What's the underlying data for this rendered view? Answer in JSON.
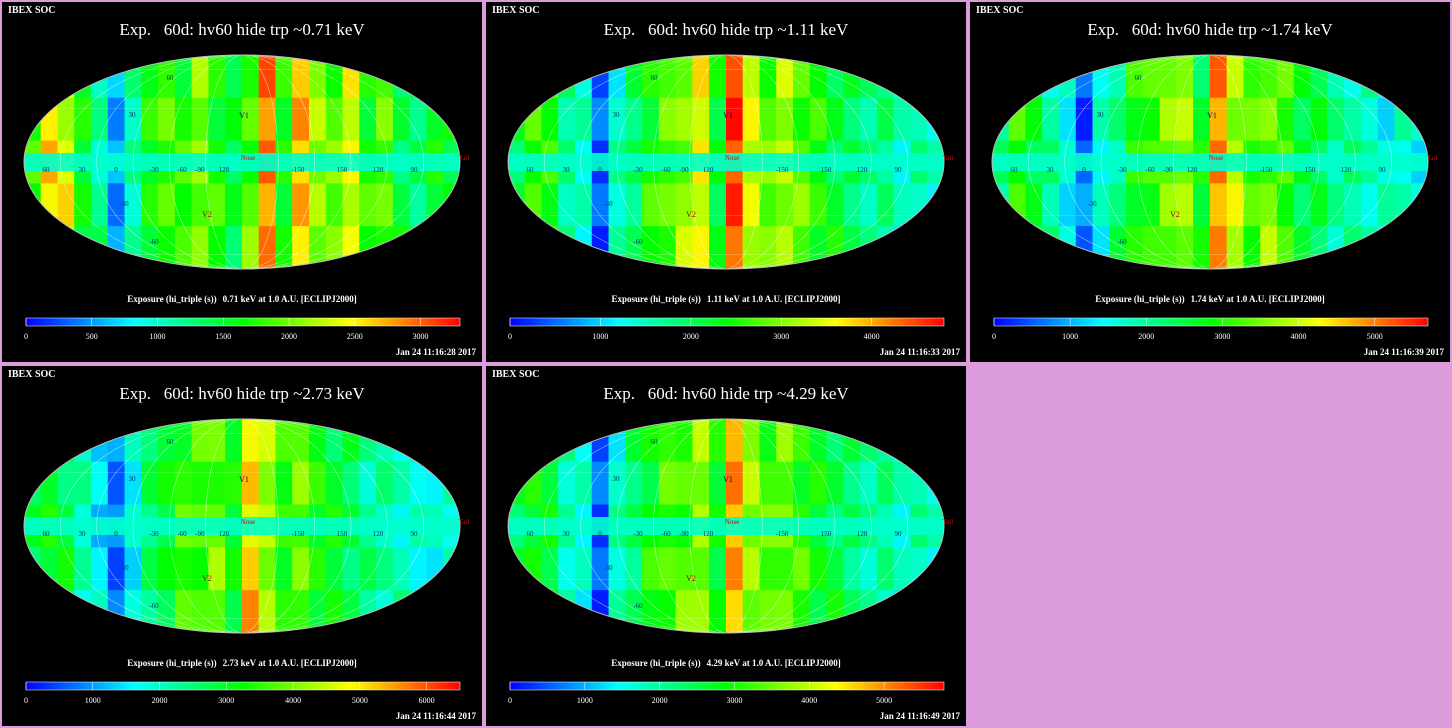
{
  "panels": [
    {
      "soc": "IBEX SOC",
      "title": "Exp.   60d: hv60 hide trp ~0.71 keV",
      "caption_left": "Exposure (hi_triple (s))",
      "caption_right": "0.71 keV at 1.0 A.U. [ECLIPJ2000]",
      "timestamp": "Jan 24 11:16:28 2017",
      "colorbar_ticks": [
        "0",
        "500",
        "1000",
        "1500",
        "2000",
        "2500",
        "3000"
      ],
      "colorbar_max": 3300
    },
    {
      "soc": "IBEX SOC",
      "title": "Exp.   60d: hv60 hide trp ~1.11 keV",
      "caption_left": "Exposure (hi_triple (s))",
      "caption_right": "1.11 keV at 1.0 A.U. [ECLIPJ2000]",
      "timestamp": "Jan 24 11:16:33 2017",
      "colorbar_ticks": [
        "0",
        "1000",
        "2000",
        "3000",
        "4000"
      ],
      "colorbar_max": 4800
    },
    {
      "soc": "IBEX SOC",
      "title": "Exp.   60d: hv60 hide trp ~1.74 keV",
      "caption_left": "Exposure (hi_triple (s))",
      "caption_right": "1.74 keV at 1.0 A.U. [ECLIPJ2000]",
      "timestamp": "Jan 24 11:16:39 2017",
      "colorbar_ticks": [
        "0",
        "1000",
        "2000",
        "3000",
        "4000",
        "5000"
      ],
      "colorbar_max": 5700
    },
    {
      "soc": "IBEX SOC",
      "title": "Exp.   60d: hv60 hide trp ~2.73 keV",
      "caption_left": "Exposure (hi_triple (s))",
      "caption_right": "2.73 keV at 1.0 A.U. [ECLIPJ2000]",
      "timestamp": "Jan 24 11:16:44 2017",
      "colorbar_ticks": [
        "0",
        "1000",
        "2000",
        "3000",
        "4000",
        "5000",
        "6000"
      ],
      "colorbar_max": 6500
    },
    {
      "soc": "IBEX SOC",
      "title": "Exp.   60d: hv60 hide trp ~4.29 keV",
      "caption_left": "Exposure (hi_triple (s))",
      "caption_right": "4.29 keV at 1.0 A.U. [ECLIPJ2000]",
      "timestamp": "Jan 24 11:16:49 2017",
      "colorbar_ticks": [
        "0",
        "1000",
        "2000",
        "3000",
        "4000",
        "5000"
      ],
      "colorbar_max": 5800
    }
  ],
  "map_labels": {
    "lat_upper": "60",
    "lat_mid": "30",
    "lat_lower": "-30",
    "lat_bottom": "-60",
    "lon_labels": [
      "60",
      "30",
      "0",
      "-30",
      "-60",
      "-90",
      "120",
      "-150",
      "150",
      "120",
      "90"
    ],
    "markers": {
      "v1": "V1",
      "v2": "V2",
      "nose": "Nose",
      "tail": "Tail"
    }
  },
  "chart_data": {
    "type": "heatmap",
    "projection": "Mollweide",
    "coordinate_frame": "ECLIPJ2000",
    "colormap": [
      "#0000ff",
      "#00ffff",
      "#00ff00",
      "#ffff00",
      "#ff0000"
    ],
    "energies_keV": [
      0.71,
      1.11,
      1.74,
      2.73,
      4.29
    ],
    "longitude_strip_values_fraction": [
      [
        0.52,
        0.8,
        0.72,
        0.48,
        0.36,
        0.14,
        0.36,
        0.48,
        0.58,
        0.52,
        0.62,
        0.52,
        0.44,
        0.58,
        0.86,
        0.52,
        0.8,
        0.66,
        0.58,
        0.72,
        0.52,
        0.58,
        0.44,
        0.38,
        0.52,
        0.44
      ],
      [
        0.42,
        0.58,
        0.52,
        0.38,
        0.28,
        0.1,
        0.3,
        0.4,
        0.52,
        0.58,
        0.64,
        0.72,
        0.48,
        0.92,
        0.72,
        0.58,
        0.66,
        0.58,
        0.52,
        0.46,
        0.4,
        0.38,
        0.36,
        0.3,
        0.32,
        0.3
      ],
      [
        0.4,
        0.52,
        0.46,
        0.34,
        0.26,
        0.1,
        0.28,
        0.38,
        0.5,
        0.56,
        0.6,
        0.66,
        0.46,
        0.86,
        0.68,
        0.56,
        0.62,
        0.54,
        0.46,
        0.42,
        0.36,
        0.34,
        0.32,
        0.28,
        0.3,
        0.28
      ],
      [
        0.4,
        0.5,
        0.44,
        0.32,
        0.24,
        0.1,
        0.28,
        0.38,
        0.48,
        0.54,
        0.56,
        0.6,
        0.48,
        0.8,
        0.64,
        0.54,
        0.58,
        0.52,
        0.46,
        0.42,
        0.36,
        0.34,
        0.32,
        0.28,
        0.3,
        0.28
      ],
      [
        0.42,
        0.52,
        0.46,
        0.34,
        0.26,
        0.1,
        0.3,
        0.4,
        0.5,
        0.56,
        0.58,
        0.62,
        0.5,
        0.82,
        0.66,
        0.56,
        0.6,
        0.54,
        0.48,
        0.44,
        0.38,
        0.36,
        0.34,
        0.3,
        0.32,
        0.3
      ]
    ]
  }
}
